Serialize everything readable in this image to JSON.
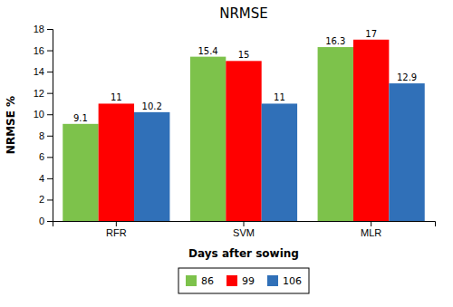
{
  "chart_data": {
    "type": "bar",
    "title": "NRMSE",
    "x_label": "Days after sowing",
    "y_label": "NRMSE %",
    "categories": [
      "RFR",
      "SVM",
      "MLR"
    ],
    "series": [
      {
        "name": "86",
        "color": "#7DC24B",
        "values": [
          9.1,
          15.4,
          16.3
        ]
      },
      {
        "name": "99",
        "color": "#FF0000",
        "values": [
          11,
          15,
          17
        ]
      },
      {
        "name": "106",
        "color": "#3070B8",
        "values": [
          10.2,
          11,
          12.9
        ]
      }
    ],
    "ylim": [
      0,
      18
    ],
    "yticks": [
      0,
      2,
      4,
      6,
      8,
      10,
      12,
      14,
      16,
      18
    ],
    "grid": false,
    "legend": "bottom",
    "data_labels": true
  }
}
